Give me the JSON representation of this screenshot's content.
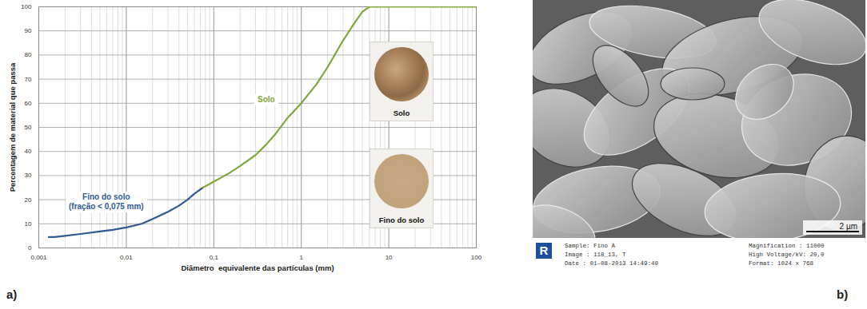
{
  "chart_data": {
    "type": "line",
    "xlabel": "Diâmetro  equivalente das partículas (mm)",
    "ylabel": "Percentagem de material que passa",
    "log": "x",
    "grid": true,
    "xlim": [
      0.001,
      100
    ],
    "ylim": [
      0,
      100
    ],
    "xticks": [
      {
        "value": 0.001,
        "label": "0,001"
      },
      {
        "value": 0.01,
        "label": "0,01"
      },
      {
        "value": 0.1,
        "label": "0,1"
      },
      1,
      10,
      100
    ],
    "yticks": [
      0,
      10,
      20,
      30,
      40,
      50,
      60,
      70,
      80,
      90,
      100
    ],
    "series": [
      {
        "name": "Fino do solo",
        "annotation": "(fração < 0,075 mm)",
        "color": "#2f5a93",
        "x": [
          0.0013,
          0.0015,
          0.002,
          0.003,
          0.005,
          0.007,
          0.01,
          0.015,
          0.02,
          0.03,
          0.04,
          0.05,
          0.06,
          0.075
        ],
        "values": [
          4.5,
          4.5,
          5,
          5.8,
          6.8,
          7.5,
          8.5,
          10,
          12,
          15,
          17.5,
          20,
          22.5,
          25
        ]
      },
      {
        "name": "Solo",
        "color": "#7fa83c",
        "x": [
          0.075,
          0.1,
          0.15,
          0.2,
          0.3,
          0.4,
          0.5,
          0.7,
          1,
          1.5,
          2,
          3,
          4,
          5,
          6,
          10,
          100
        ],
        "values": [
          25,
          27.5,
          31,
          34,
          38.5,
          43,
          47,
          54,
          60,
          68,
          75,
          86,
          93,
          98,
          100,
          100,
          100
        ]
      }
    ],
    "insets": [
      "Solo",
      "Fino do solo"
    ]
  },
  "panel_labels": [
    "a)",
    "b)"
  ],
  "image": {
    "scale_bar": "2 µm",
    "info_left": [
      "Sample: Fino A",
      "Image : 118_13, T",
      "Date : 01-08-2013 14:49:40"
    ],
    "info_right": [
      "Magnification : 11000",
      "High Voltage/kV: 20,0",
      "Format: 1024 x 768"
    ]
  }
}
